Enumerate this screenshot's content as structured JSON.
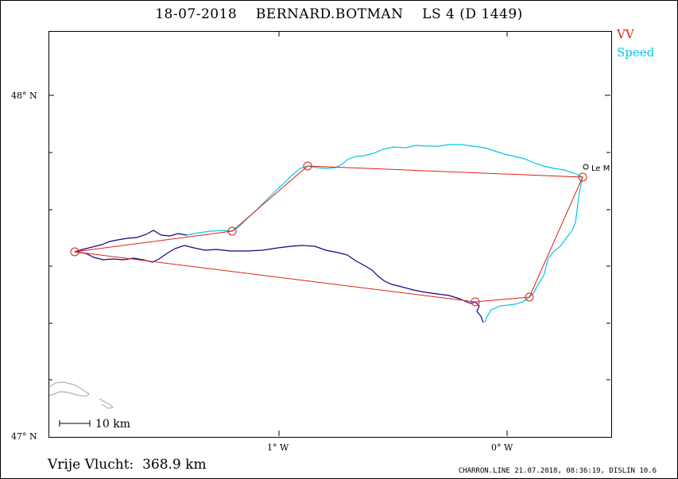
{
  "title": "18-07-2018    BERNARD.BOTMAN    LS 4 (D 1449)",
  "legend": {
    "vv_label": "VV",
    "speed_label": "Speed",
    "vv_color": "#e02010",
    "speed_color": "#00c8e8"
  },
  "axes": {
    "lat_labels": [
      "48° N",
      "47° N"
    ],
    "lon_labels": [
      "1° W",
      "0° W"
    ]
  },
  "scale_bar_label": "10 km",
  "town_label": "Le M",
  "footer": {
    "distance_text": "Vrije Vlucht:  368.9 km",
    "credit_text": "CHARRON.LINE 21.07.2018, 08:36:19, DISLIN 10.6"
  },
  "colors": {
    "track_dark": "#1a0080",
    "track_light": "#00c8e8",
    "triangle": "#e02010",
    "coast": "#a0a0a0"
  }
}
